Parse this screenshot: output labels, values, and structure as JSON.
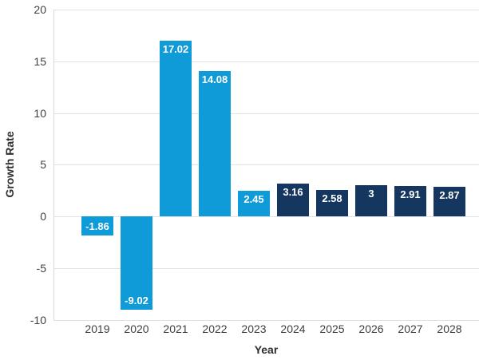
{
  "chart_data": {
    "type": "bar",
    "title": "",
    "xlabel": "Year",
    "ylabel": "Growth Rate",
    "categories": [
      "2019",
      "2020",
      "2021",
      "2022",
      "2023",
      "2024",
      "2025",
      "2026",
      "2027",
      "2028"
    ],
    "values": [
      -1.86,
      -9.02,
      17.02,
      14.08,
      2.45,
      3.16,
      2.58,
      3,
      2.91,
      2.87
    ],
    "value_labels": [
      "-1.86",
      "-9.02",
      "17.02",
      "14.08",
      "2.45",
      "3.16",
      "2.58",
      "3",
      "2.91",
      "2.87"
    ],
    "bar_colors": [
      "#0f9ad8",
      "#0f9ad8",
      "#0f9ad8",
      "#0f9ad8",
      "#0f9ad8",
      "#15365f",
      "#15365f",
      "#15365f",
      "#15365f",
      "#15365f"
    ],
    "value_label_color": "#ffffff",
    "yticks": [
      20,
      15,
      10,
      5,
      0,
      -5,
      -10
    ],
    "ylim": [
      -10,
      20
    ],
    "grid": true,
    "legend": null,
    "colors": {
      "light_blue": "#0f9ad8",
      "dark_navy": "#15365f",
      "gridline": "#e2e2e2",
      "tick_text": "#3f3f3f"
    }
  }
}
